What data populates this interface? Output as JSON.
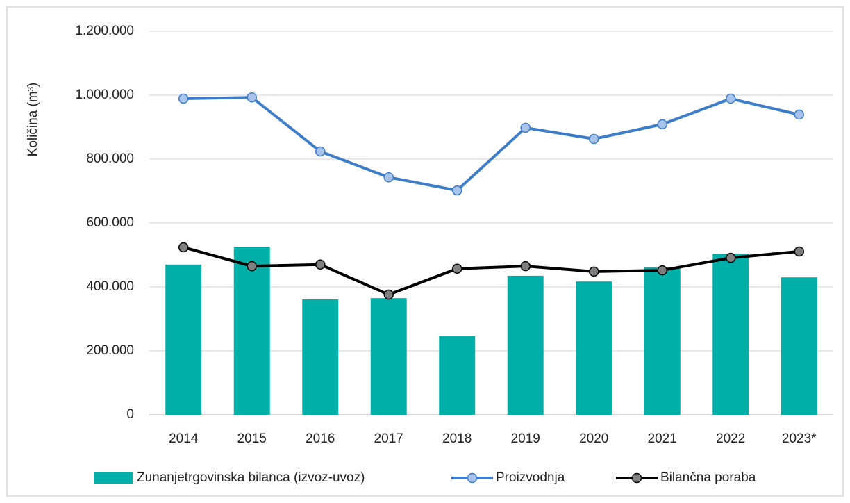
{
  "chart_data": {
    "type": "combo",
    "y_label": "Količina (m³)",
    "categories": [
      "2014",
      "2015",
      "2016",
      "2017",
      "2018",
      "2019",
      "2020",
      "2021",
      "2022",
      "2023*"
    ],
    "series": [
      {
        "name": "Zunanjetrgovinska bilanca (izvoz-uvoz)",
        "type": "bar",
        "color": "#00b0a8",
        "values": [
          470000,
          526000,
          361000,
          365000,
          246000,
          435000,
          417000,
          461000,
          504000,
          430000
        ]
      },
      {
        "name": "Proizvodnja",
        "type": "line",
        "color": "#3d7cc9",
        "marker_color": "#a8c4ec",
        "values": [
          989000,
          993000,
          824000,
          743000,
          702000,
          898000,
          863000,
          909000,
          989000,
          939000
        ]
      },
      {
        "name": "Bilančna poraba",
        "type": "line",
        "color": "#000000",
        "marker_color": "#808080",
        "values": [
          524000,
          465000,
          470000,
          376000,
          457000,
          465000,
          448000,
          452000,
          491000,
          511000
        ]
      }
    ],
    "ylim": [
      0,
      1200000
    ],
    "yticks": [
      0,
      {
        "value": 200000,
        "label": "200.000"
      },
      {
        "value": 400000,
        "label": "400.000"
      },
      {
        "value": 600000,
        "label": "600.000"
      },
      {
        "value": 800000,
        "label": "800.000"
      },
      {
        "value": 1000000,
        "label": "1.000.000"
      },
      {
        "value": 1200000,
        "label": "1.200.000"
      }
    ],
    "grid": true,
    "legend": "bottom"
  }
}
